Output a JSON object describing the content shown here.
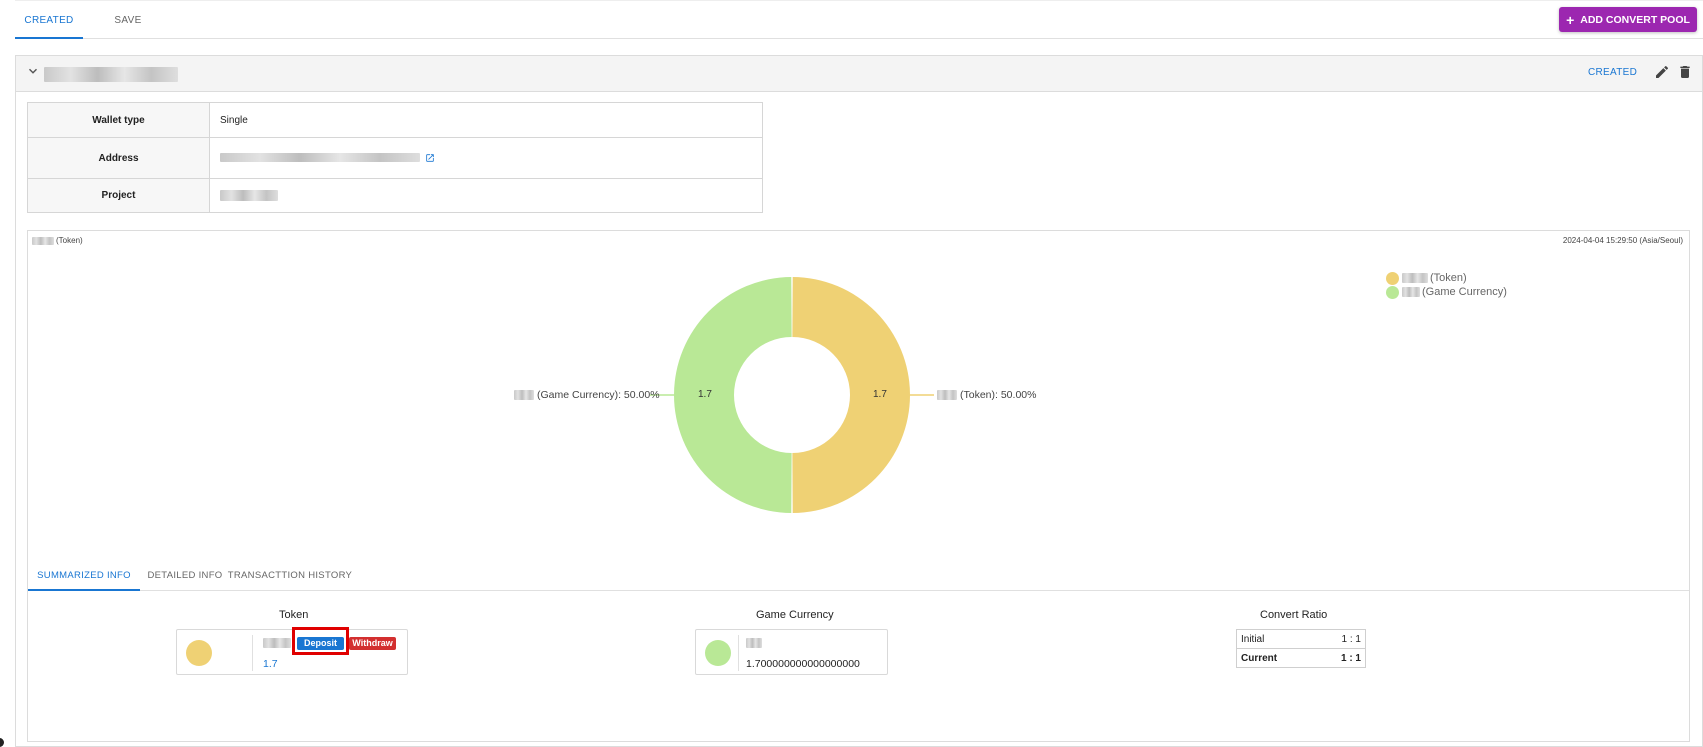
{
  "tabs": [
    {
      "label": "CREATED",
      "active": true
    },
    {
      "label": "SAVE",
      "active": false
    }
  ],
  "add_button": {
    "label": "ADD CONVERT POOL",
    "icon": "plus-icon",
    "color": "#9c27b0"
  },
  "pool": {
    "status": "CREATED",
    "wallet_info": [
      {
        "label": "Wallet type",
        "value": "Single"
      },
      {
        "label": "Address",
        "value": ""
      },
      {
        "label": "Project",
        "value": ""
      }
    ]
  },
  "chart_panel": {
    "title_suffix": "(Token)",
    "timestamp": "2024-04-04 15:29:50 (Asia/Seoul)"
  },
  "chart_data": {
    "type": "pie",
    "donut": true,
    "series": [
      {
        "name": "(Token)",
        "value": 1.7,
        "percent": "50.00%",
        "color": "#efd174",
        "outer_label": "(Token): 50.00%"
      },
      {
        "name": "(Game Currency)",
        "value": 1.7,
        "percent": "50.00%",
        "color": "#b9e896",
        "outer_label": "(Game Currency): 50.00%"
      }
    ],
    "slice_value_labels": [
      "1.7",
      "1.7"
    ],
    "legend_position": "top-right"
  },
  "sub_tabs": [
    {
      "label": "SUMMARIZED INFO",
      "active": true
    },
    {
      "label": "DETAILED INFO",
      "active": false
    },
    {
      "label": "TRANSACTTION HISTORY",
      "active": false
    }
  ],
  "summary": {
    "token": {
      "heading": "Token",
      "amount": "1.7",
      "color": "#efd174",
      "deposit_label": "Deposit",
      "withdraw_label": "Withdraw"
    },
    "game_currency": {
      "heading": "Game Currency",
      "amount": "1.700000000000000000",
      "color": "#b9e896"
    },
    "convert_ratio": {
      "heading": "Convert Ratio",
      "rows": [
        {
          "label": "Initial",
          "value": "1 : 1"
        },
        {
          "label": "Current",
          "value": "1 : 1"
        }
      ]
    }
  },
  "colors": {
    "accent": "#1976d2",
    "deposit": "#1976d2",
    "withdraw": "#d32f2f",
    "highlight": "#e00000"
  }
}
